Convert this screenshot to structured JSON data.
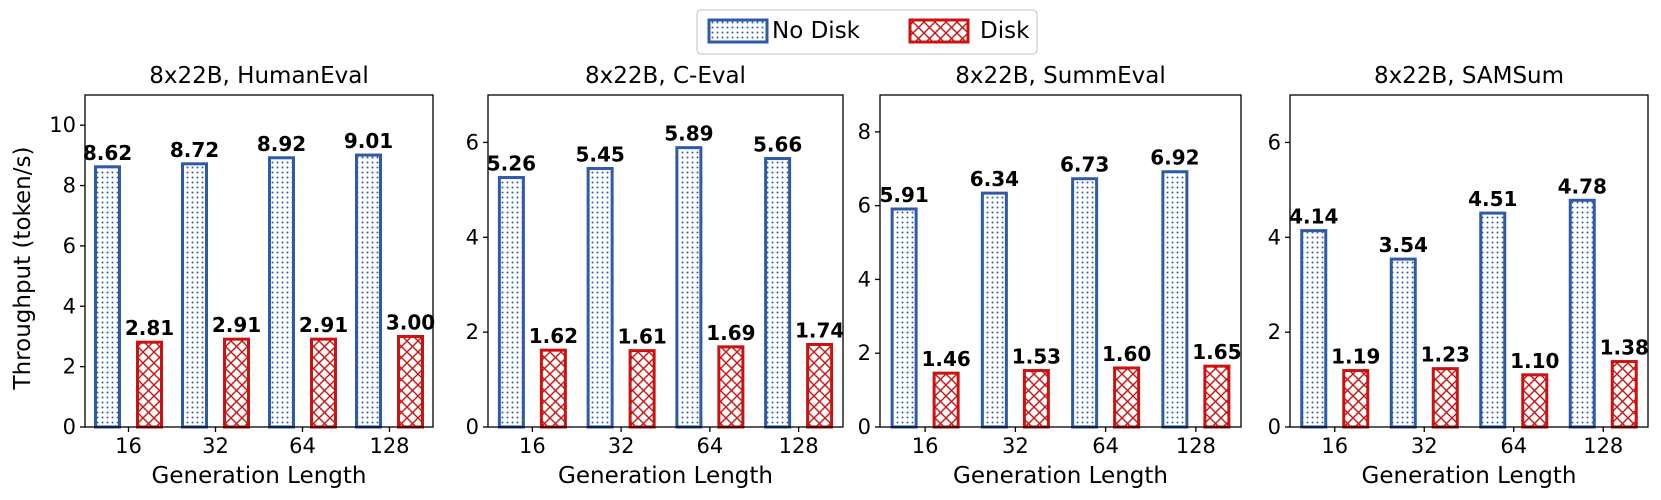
{
  "legend": {
    "items": [
      {
        "name": "No Disk",
        "pattern": "dots",
        "color": "#2e5aa8"
      },
      {
        "name": "Disk",
        "pattern": "cross",
        "color": "#cc1111"
      }
    ]
  },
  "ylabel": "Throughput (token/s)",
  "chart_data": [
    {
      "type": "bar",
      "title": "8x22B, HumanEval",
      "xlabel": "Generation Length",
      "ylabel": "Throughput (token/s)",
      "categories": [
        "16",
        "32",
        "64",
        "128"
      ],
      "ylim": [
        0,
        11
      ],
      "yticks": [
        0,
        2,
        4,
        6,
        8,
        10
      ],
      "series": [
        {
          "name": "No Disk",
          "values": [
            8.62,
            8.72,
            8.92,
            9.01
          ],
          "labels": [
            "8.62",
            "8.72",
            "8.92",
            "9.01"
          ]
        },
        {
          "name": "Disk",
          "values": [
            2.81,
            2.91,
            2.91,
            3.0
          ],
          "labels": [
            "2.81",
            "2.91",
            "2.91",
            "3.00"
          ]
        }
      ]
    },
    {
      "type": "bar",
      "title": "8x22B, C-Eval",
      "xlabel": "Generation Length",
      "ylabel": "",
      "categories": [
        "16",
        "32",
        "64",
        "128"
      ],
      "ylim": [
        0,
        7
      ],
      "yticks": [
        0,
        2,
        4,
        6
      ],
      "series": [
        {
          "name": "No Disk",
          "values": [
            5.26,
            5.45,
            5.89,
            5.66
          ],
          "labels": [
            "5.26",
            "5.45",
            "5.89",
            "5.66"
          ]
        },
        {
          "name": "Disk",
          "values": [
            1.62,
            1.61,
            1.69,
            1.74
          ],
          "labels": [
            "1.62",
            "1.61",
            "1.69",
            "1.74"
          ]
        }
      ]
    },
    {
      "type": "bar",
      "title": "8x22B, SummEval",
      "xlabel": "Generation Length",
      "ylabel": "",
      "categories": [
        "16",
        "32",
        "64",
        "128"
      ],
      "ylim": [
        0,
        9
      ],
      "yticks": [
        0,
        2,
        4,
        6,
        8
      ],
      "series": [
        {
          "name": "No Disk",
          "values": [
            5.91,
            6.34,
            6.73,
            6.92
          ],
          "labels": [
            "5.91",
            "6.34",
            "6.73",
            "6.92"
          ]
        },
        {
          "name": "Disk",
          "values": [
            1.46,
            1.53,
            1.6,
            1.65
          ],
          "labels": [
            "1.46",
            "1.53",
            "1.60",
            "1.65"
          ]
        }
      ]
    },
    {
      "type": "bar",
      "title": "8x22B, SAMSum",
      "xlabel": "Generation Length",
      "ylabel": "",
      "categories": [
        "16",
        "32",
        "64",
        "128"
      ],
      "ylim": [
        0,
        7
      ],
      "yticks": [
        0,
        2,
        4,
        6
      ],
      "series": [
        {
          "name": "No Disk",
          "values": [
            4.14,
            3.54,
            4.51,
            4.78
          ],
          "labels": [
            "4.14",
            "3.54",
            "4.51",
            "4.78"
          ]
        },
        {
          "name": "Disk",
          "values": [
            1.19,
            1.23,
            1.1,
            1.38
          ],
          "labels": [
            "1.19",
            "1.23",
            "1.10",
            "1.38"
          ]
        }
      ]
    }
  ]
}
